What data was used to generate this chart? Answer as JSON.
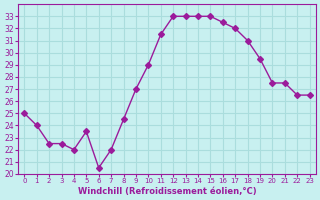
{
  "x": [
    0,
    1,
    2,
    3,
    4,
    5,
    6,
    7,
    8,
    9,
    10,
    11,
    12,
    13,
    14,
    15,
    16,
    17,
    18,
    19,
    20,
    21,
    22,
    23
  ],
  "y": [
    25.0,
    24.0,
    22.5,
    22.5,
    22.0,
    23.5,
    20.5,
    22.0,
    24.5,
    27.0,
    29.0,
    31.5,
    33.0,
    33.0,
    33.0,
    33.0,
    32.5,
    32.0,
    31.0,
    29.5,
    27.5,
    27.5,
    26.5,
    26.5
  ],
  "line_color": "#9b1b9b",
  "marker": "D",
  "marker_size": 3,
  "bg_color": "#c8f0f0",
  "grid_color": "#aadddd",
  "xlim": [
    -0.5,
    23.5
  ],
  "ylim": [
    20,
    34
  ],
  "yticks": [
    20,
    21,
    22,
    23,
    24,
    25,
    26,
    27,
    28,
    29,
    30,
    31,
    32,
    33
  ],
  "xtick_labels": [
    "0",
    "1",
    "2",
    "3",
    "4",
    "5",
    "6",
    "7",
    "8",
    "9",
    "10",
    "11",
    "12",
    "13",
    "14",
    "15",
    "16",
    "17",
    "18",
    "19",
    "20",
    "21",
    "22",
    "23"
  ],
  "xlabel": "Windchill (Refroidissement éolien,°C)",
  "xlabel_color": "#9b1b9b",
  "tick_color": "#9b1b9b"
}
